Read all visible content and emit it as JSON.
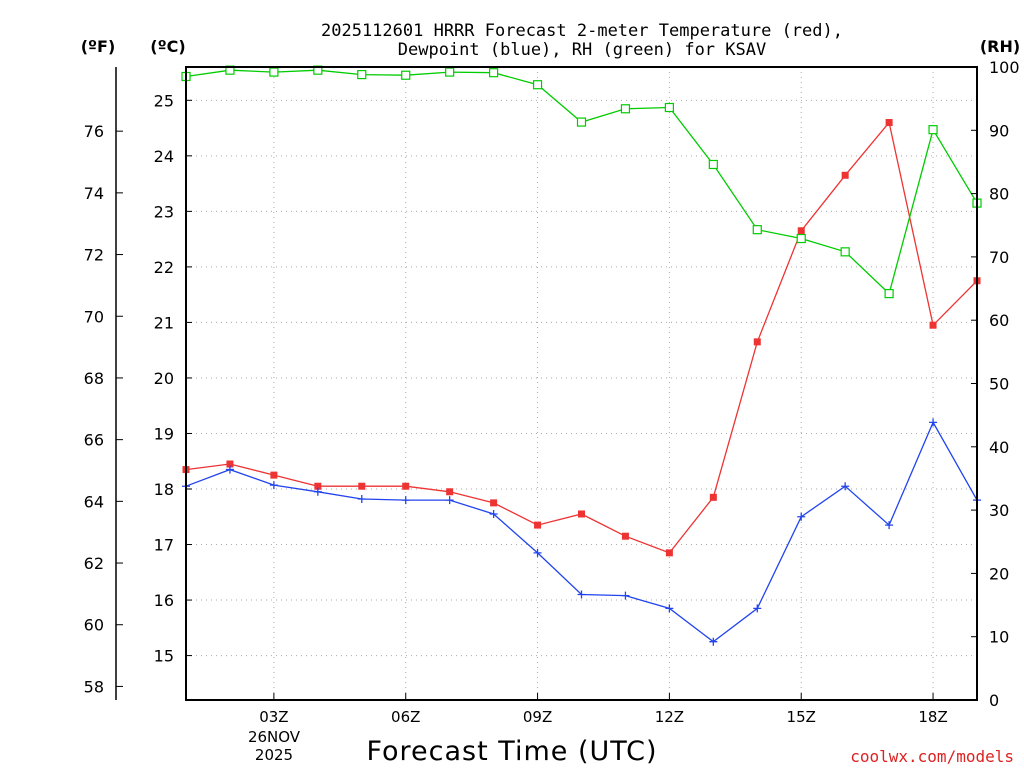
{
  "chart_data": {
    "type": "line",
    "title_line1": "2025112601 HRRR Forecast 2-meter Temperature (red),",
    "title_line2": "Dewpoint (blue), RH (green) for KSAV",
    "xlabel": "Forecast Time (UTC)",
    "unit_labels": {
      "fahrenheit": "(ºF)",
      "celsius": "(ºC)",
      "rh": "(RH)"
    },
    "date_label_line1": "26NOV",
    "date_label_line2": "2025",
    "watermark": "coolwx.com/models",
    "x_hours": [
      1,
      2,
      3,
      4,
      5,
      6,
      7,
      8,
      9,
      10,
      11,
      12,
      13,
      14,
      15,
      16,
      17,
      18,
      19
    ],
    "x_range": [
      1,
      19
    ],
    "x_ticks": [
      {
        "hour": 3,
        "label": "03Z"
      },
      {
        "hour": 6,
        "label": "06Z"
      },
      {
        "hour": 9,
        "label": "09Z"
      },
      {
        "hour": 12,
        "label": "12Z"
      },
      {
        "hour": 15,
        "label": "15Z"
      },
      {
        "hour": 18,
        "label": "18Z"
      }
    ],
    "celsius_range": [
      14.2,
      25.6
    ],
    "celsius_ticks": [
      15,
      16,
      17,
      18,
      19,
      20,
      21,
      22,
      23,
      24,
      25
    ],
    "fahrenheit_ticks": [
      58,
      60,
      62,
      64,
      66,
      68,
      70,
      72,
      74,
      76
    ],
    "rh_range": [
      0,
      100
    ],
    "rh_ticks": [
      0,
      10,
      20,
      30,
      40,
      50,
      60,
      70,
      80,
      90,
      100
    ],
    "series": [
      {
        "name": "Temperature",
        "axis": "celsius",
        "color": "#ee3333",
        "marker": "filled-square",
        "values": [
          18.35,
          18.45,
          18.25,
          18.05,
          18.05,
          18.05,
          17.95,
          17.75,
          17.35,
          17.55,
          17.15,
          16.85,
          17.85,
          20.65,
          22.65,
          23.65,
          24.6,
          20.95,
          21.75
        ]
      },
      {
        "name": "Dewpoint",
        "axis": "celsius",
        "color": "#2244ee",
        "marker": "plus",
        "values": [
          18.05,
          18.35,
          18.07,
          17.95,
          17.82,
          17.8,
          17.8,
          17.55,
          16.85,
          16.1,
          16.08,
          15.85,
          15.25,
          15.85,
          17.5,
          18.05,
          17.35,
          19.2,
          17.8
        ]
      },
      {
        "name": "RH",
        "axis": "rh",
        "color": "#00cc00",
        "marker": "open-square",
        "values": [
          98.5,
          99.5,
          99.2,
          99.5,
          98.8,
          98.7,
          99.2,
          99.1,
          97.2,
          91.3,
          93.4,
          93.6,
          84.6,
          74.3,
          72.9,
          70.8,
          64.2,
          90.1,
          78.5
        ]
      }
    ],
    "colors": {
      "frame": "#000000",
      "grid": "#aaaaaa",
      "watermark": "#dd2222"
    }
  }
}
